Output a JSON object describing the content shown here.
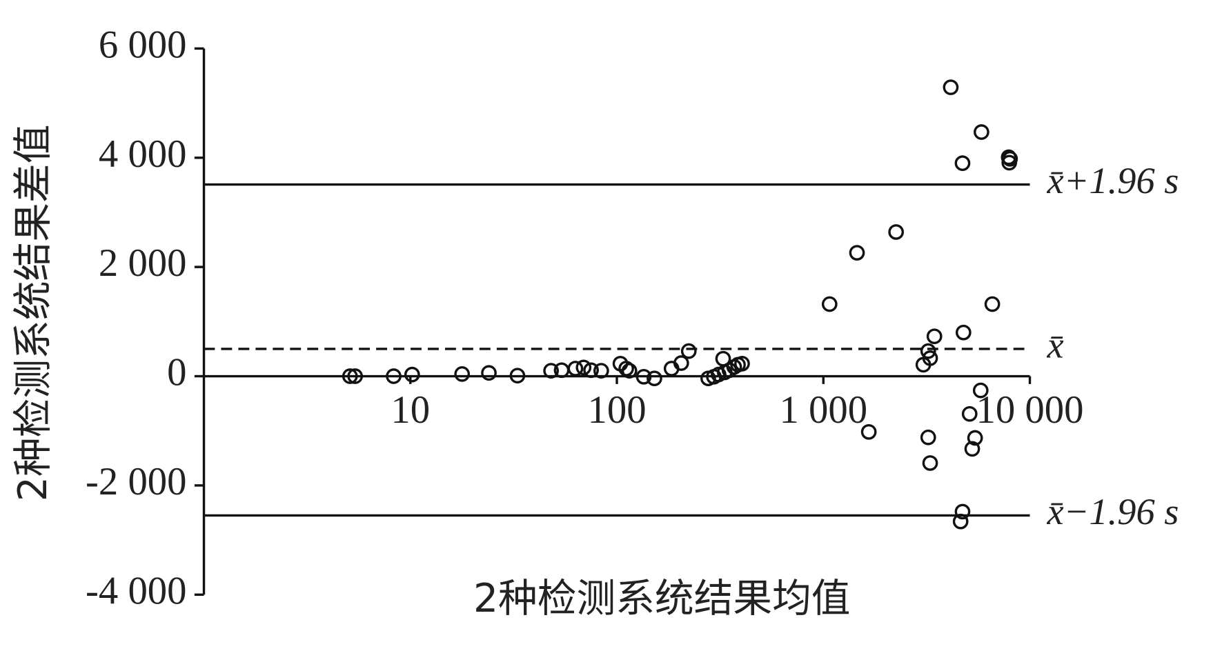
{
  "chart_data": {
    "type": "scatter",
    "xlabel": "2种检测系统结果均值",
    "ylabel": "2种检测系统结果差值",
    "xscale": "log",
    "xlim": [
      1,
      10000
    ],
    "xticks": [
      10,
      100,
      {
        "value": 1000,
        "label": "1 000"
      },
      {
        "value": 10000,
        "label": "10 000"
      }
    ],
    "ylim": [
      -4000,
      6000
    ],
    "yticks": [
      {
        "value": -4000,
        "label": "-4 000"
      },
      {
        "value": -2000,
        "label": "-2 000"
      },
      0,
      {
        "value": 2000,
        "label": "2 000"
      },
      {
        "value": 4000,
        "label": "4 000"
      },
      {
        "value": 6000,
        "label": "6 000"
      }
    ],
    "grid": false,
    "color": "#111111",
    "series": [
      {
        "x": [
          5.1,
          5.4,
          8.3,
          10.2,
          17.8,
          24,
          33,
          48,
          54,
          63,
          69,
          75,
          84,
          104,
          111,
          115,
          135,
          152,
          184,
          205,
          223,
          277,
          295,
          311,
          327,
          333,
          351,
          370,
          386,
          404,
          1072,
          1455,
          1660,
          2250,
          3050,
          3220,
          3290,
          3450,
          3220,
          3290,
          4140,
          4720,
          4770,
          4720,
          4620,
          5110,
          5430,
          5260,
          5830,
          5780,
          6580,
          7900,
          7950,
          8020
        ],
        "values": [
          0,
          0,
          0,
          30,
          40,
          60,
          10,
          100,
          110,
          140,
          160,
          110,
          100,
          230,
          140,
          100,
          -10,
          -40,
          140,
          240,
          460,
          -40,
          -10,
          30,
          320,
          70,
          110,
          170,
          210,
          230,
          1320,
          2260,
          -1020,
          2640,
          210,
          460,
          330,
          730,
          -1120,
          -1590,
          5290,
          3900,
          800,
          -2480,
          -2660,
          -690,
          -1130,
          -1330,
          4470,
          -260,
          1320,
          4010,
          3910,
          3980
        ]
      }
    ],
    "reference_lines": [
      {
        "value": 3510,
        "label": "x̄+1.96 s",
        "style": "solid"
      },
      {
        "value": 500,
        "label": "x̄",
        "style": "dashed"
      },
      {
        "value": -2550,
        "label": "x̄−1.96 s",
        "style": "solid"
      }
    ]
  }
}
